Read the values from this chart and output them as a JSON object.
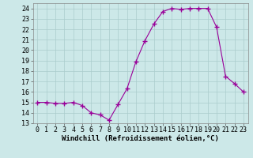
{
  "x": [
    0,
    1,
    2,
    3,
    4,
    5,
    6,
    7,
    8,
    9,
    10,
    11,
    12,
    13,
    14,
    15,
    16,
    17,
    18,
    19,
    20,
    21,
    22,
    23
  ],
  "y": [
    15.0,
    15.0,
    14.9,
    14.9,
    15.0,
    14.7,
    14.0,
    13.8,
    13.3,
    14.8,
    16.3,
    18.9,
    20.9,
    22.5,
    23.7,
    24.0,
    23.9,
    24.0,
    24.0,
    24.0,
    22.2,
    17.5,
    16.8,
    16.0
  ],
  "line_color": "#990099",
  "marker": "+",
  "marker_size": 4,
  "bg_color": "#cce8e8",
  "grid_color": "#aacccc",
  "xlabel": "Windchill (Refroidissement éolien,°C)",
  "xlabel_fontsize": 6.5,
  "tick_fontsize": 6,
  "ylim": [
    13,
    24.5
  ],
  "xlim": [
    -0.5,
    23.5
  ],
  "yticks": [
    13,
    14,
    15,
    16,
    17,
    18,
    19,
    20,
    21,
    22,
    23,
    24
  ],
  "xticks": [
    0,
    1,
    2,
    3,
    4,
    5,
    6,
    7,
    8,
    9,
    10,
    11,
    12,
    13,
    14,
    15,
    16,
    17,
    18,
    19,
    20,
    21,
    22,
    23
  ]
}
